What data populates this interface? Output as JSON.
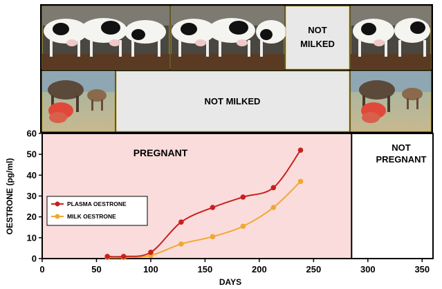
{
  "top_row": {
    "photos": [
      "cows-milking-photo",
      "cows-milking-photo",
      "cows-milking-photo"
    ],
    "not_milked_label_line1": "NOT",
    "not_milked_label_line2": "MILKED"
  },
  "middle_row": {
    "photos": [
      "calf-suckling-photo",
      "calf-suckling-photo"
    ],
    "not_milked_label": "NOT MILKED"
  },
  "regions": {
    "pregnant_label": "PREGNANT",
    "not_pregnant_line1": "NOT",
    "not_pregnant_line2": "PREGNANT",
    "pregnant_color": "#fadcdc"
  },
  "chart_data": {
    "type": "line",
    "title": "",
    "xlabel": "DAYS",
    "ylabel": "OESTRONE (pg/ml)",
    "xlim": [
      0,
      360
    ],
    "ylim": [
      0,
      60
    ],
    "x_ticks": [
      0,
      50,
      100,
      150,
      200,
      250,
      300,
      350
    ],
    "y_ticks": [
      0,
      10,
      20,
      30,
      40,
      50,
      60
    ],
    "pregnancy_end_day": 285,
    "legend_position": "left",
    "series": [
      {
        "name": "PLASMA OESTRONE",
        "color": "#c8201e",
        "points": [
          [
            60,
            1
          ],
          [
            75,
            1
          ],
          [
            100,
            3
          ],
          [
            128,
            17.5
          ],
          [
            157,
            24.5
          ],
          [
            185,
            29.5
          ],
          [
            213,
            34
          ],
          [
            238,
            52
          ]
        ]
      },
      {
        "name": "MILK OESTRONE",
        "color": "#f0a830",
        "points": [
          [
            60,
            0.5
          ],
          [
            75,
            0.5
          ],
          [
            100,
            1.5
          ],
          [
            128,
            7
          ],
          [
            157,
            10.5
          ],
          [
            185,
            15.5
          ],
          [
            213,
            24.5
          ],
          [
            238,
            37
          ]
        ]
      }
    ]
  }
}
